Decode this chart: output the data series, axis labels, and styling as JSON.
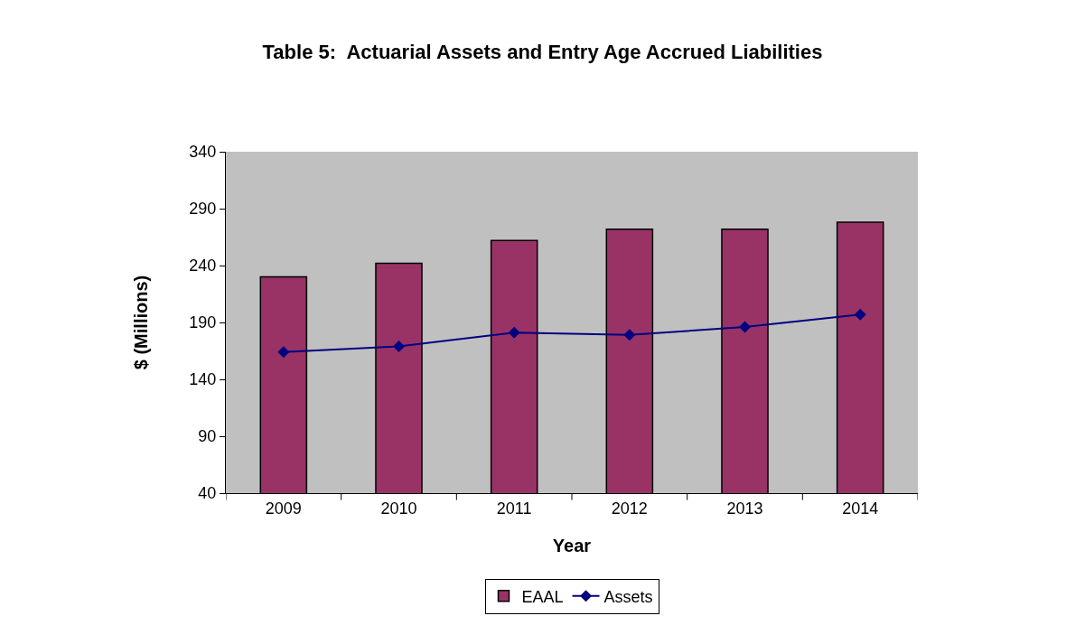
{
  "chart_data": {
    "type": "bar",
    "title": "Table 5:  Actuarial Assets and Entry Age Accrued Liabilities",
    "xlabel": "Year",
    "ylabel": "$ (Millions)",
    "categories": [
      "2009",
      "2010",
      "2011",
      "2012",
      "2013",
      "2014"
    ],
    "series": [
      {
        "name": "EAAL",
        "color": "#993366",
        "values": [
          230,
          242,
          262,
          272,
          272,
          278
        ]
      },
      {
        "name": "Assets",
        "type": "line",
        "color": "#000080",
        "values": [
          164,
          169,
          181,
          179,
          186,
          197
        ],
        "marker": "diamond",
        "line_style": "solid"
      }
    ],
    "ylim": [
      40,
      340
    ],
    "yticks": [
      40,
      90,
      140,
      190,
      240,
      290,
      340
    ],
    "grid": false,
    "legend": "bottom"
  }
}
